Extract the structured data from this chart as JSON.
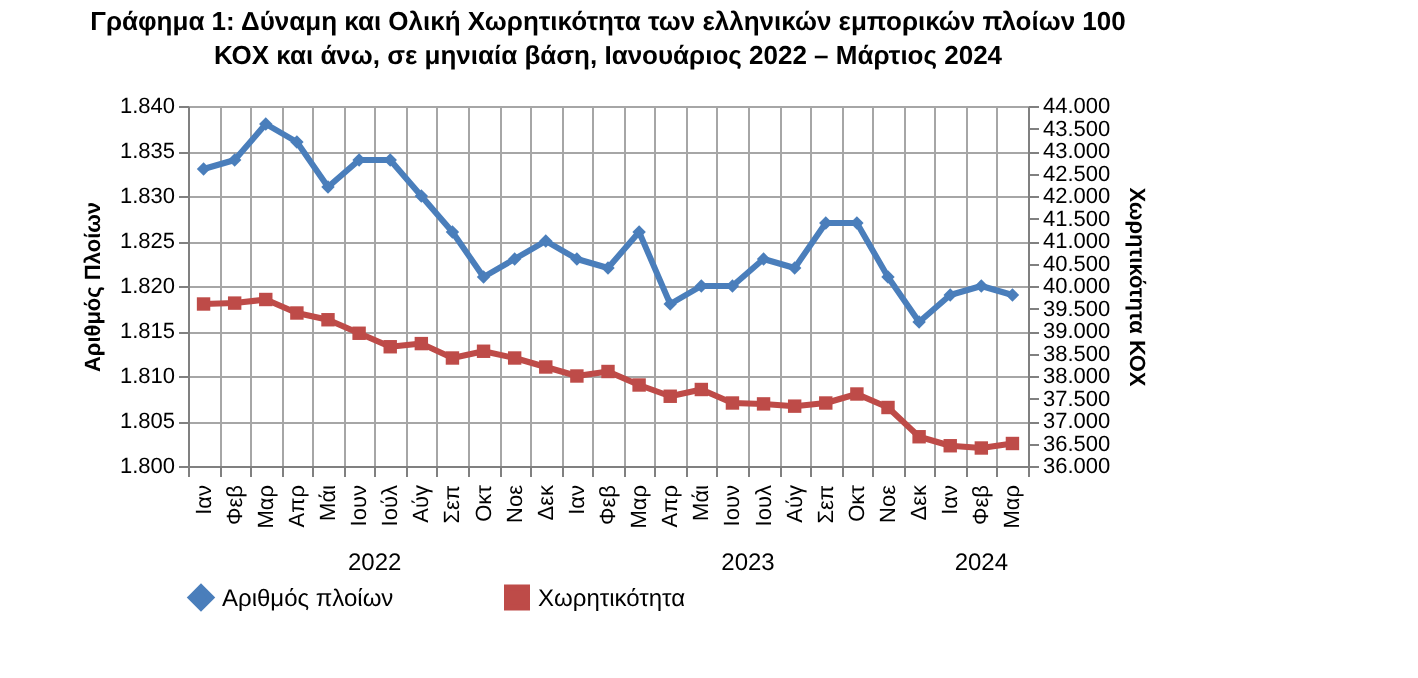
{
  "chart_data": {
    "type": "line",
    "title": "Γράφημα 1: Δύναμη και Ολική Χωρητικότητα των ελληνικών εμπορικών πλοίων 100 ΚΟΧ και άνω, σε μηνιαία βάση, Ιανουάριος 2022 – Μάρτιος 2024",
    "ylabel": "Αριθμός Πλοίων",
    "y2label": "Χωρητικότητα ΚΟΧ",
    "categories": [
      "Ιαν",
      "Φεβ",
      "Μαρ",
      "Απρ",
      "Μάι",
      "Ιουν",
      "Ιούλ",
      "Αύγ",
      "Σεπ",
      "Οκτ",
      "Νοε",
      "Δεκ",
      "Ιαν",
      "Φεβ",
      "Μαρ",
      "Απρ",
      "Μάι",
      "Ιουν",
      "Ιουλ",
      "Αύγ",
      "Σεπ",
      "Οκτ",
      "Νοε",
      "Δεκ",
      "Ιαν",
      "Φεβ",
      "Μαρ"
    ],
    "annotations": [
      "2022",
      "2023",
      "2024"
    ],
    "series": [
      {
        "name": "Αριθμός πλοίων",
        "color": "#4a7ebb",
        "marker": "diamond",
        "values": [
          1833,
          1834,
          1838,
          1836,
          1831,
          1834,
          1834,
          1830,
          1826,
          1821,
          1823,
          1825,
          1823,
          1822,
          1826,
          1818,
          1820,
          1820,
          1823,
          1822,
          1827,
          1827,
          1821,
          1816,
          1819,
          1820,
          1819
        ]
      },
      {
        "name": "Χωρητικότητα",
        "color": "#be4b48",
        "marker": "square",
        "axis": "y2",
        "values": [
          39600,
          39620,
          39700,
          39400,
          39250,
          38950,
          38650,
          38720,
          38400,
          38550,
          38400,
          38200,
          38000,
          38100,
          37800,
          37550,
          37700,
          37400,
          37380,
          37330,
          37400,
          37600,
          37300,
          36650,
          36450,
          36400,
          36500
        ]
      }
    ],
    "ylim": [
      1800,
      1840
    ],
    "yticks": [
      {
        "value": 1800,
        "label": "1.800"
      },
      {
        "value": 1805,
        "label": "1.805"
      },
      {
        "value": 1810,
        "label": "1.810"
      },
      {
        "value": 1815,
        "label": "1.815"
      },
      {
        "value": 1820,
        "label": "1.820"
      },
      {
        "value": 1825,
        "label": "1.825"
      },
      {
        "value": 1830,
        "label": "1.830"
      },
      {
        "value": 1835,
        "label": "1.835"
      },
      {
        "value": 1840,
        "label": "1.840"
      }
    ],
    "y2lim": [
      36000,
      44000
    ],
    "y2ticks": [
      {
        "value": 36000,
        "label": "36.000"
      },
      {
        "value": 36500,
        "label": "36.500"
      },
      {
        "value": 37000,
        "label": "37.000"
      },
      {
        "value": 37500,
        "label": "37.500"
      },
      {
        "value": 38000,
        "label": "38.000"
      },
      {
        "value": 38500,
        "label": "38.500"
      },
      {
        "value": 39000,
        "label": "39.000"
      },
      {
        "value": 39500,
        "label": "39.500"
      },
      {
        "value": 40000,
        "label": "40.000"
      },
      {
        "value": 40500,
        "label": "40.500"
      },
      {
        "value": 41000,
        "label": "41.000"
      },
      {
        "value": 41500,
        "label": "41.500"
      },
      {
        "value": 42000,
        "label": "42.000"
      },
      {
        "value": 42500,
        "label": "42.500"
      },
      {
        "value": 43000,
        "label": "43.000"
      },
      {
        "value": 43500,
        "label": "43.500"
      },
      {
        "value": 44000,
        "label": "44.000"
      }
    ],
    "grid": true,
    "legend": "bottom"
  }
}
